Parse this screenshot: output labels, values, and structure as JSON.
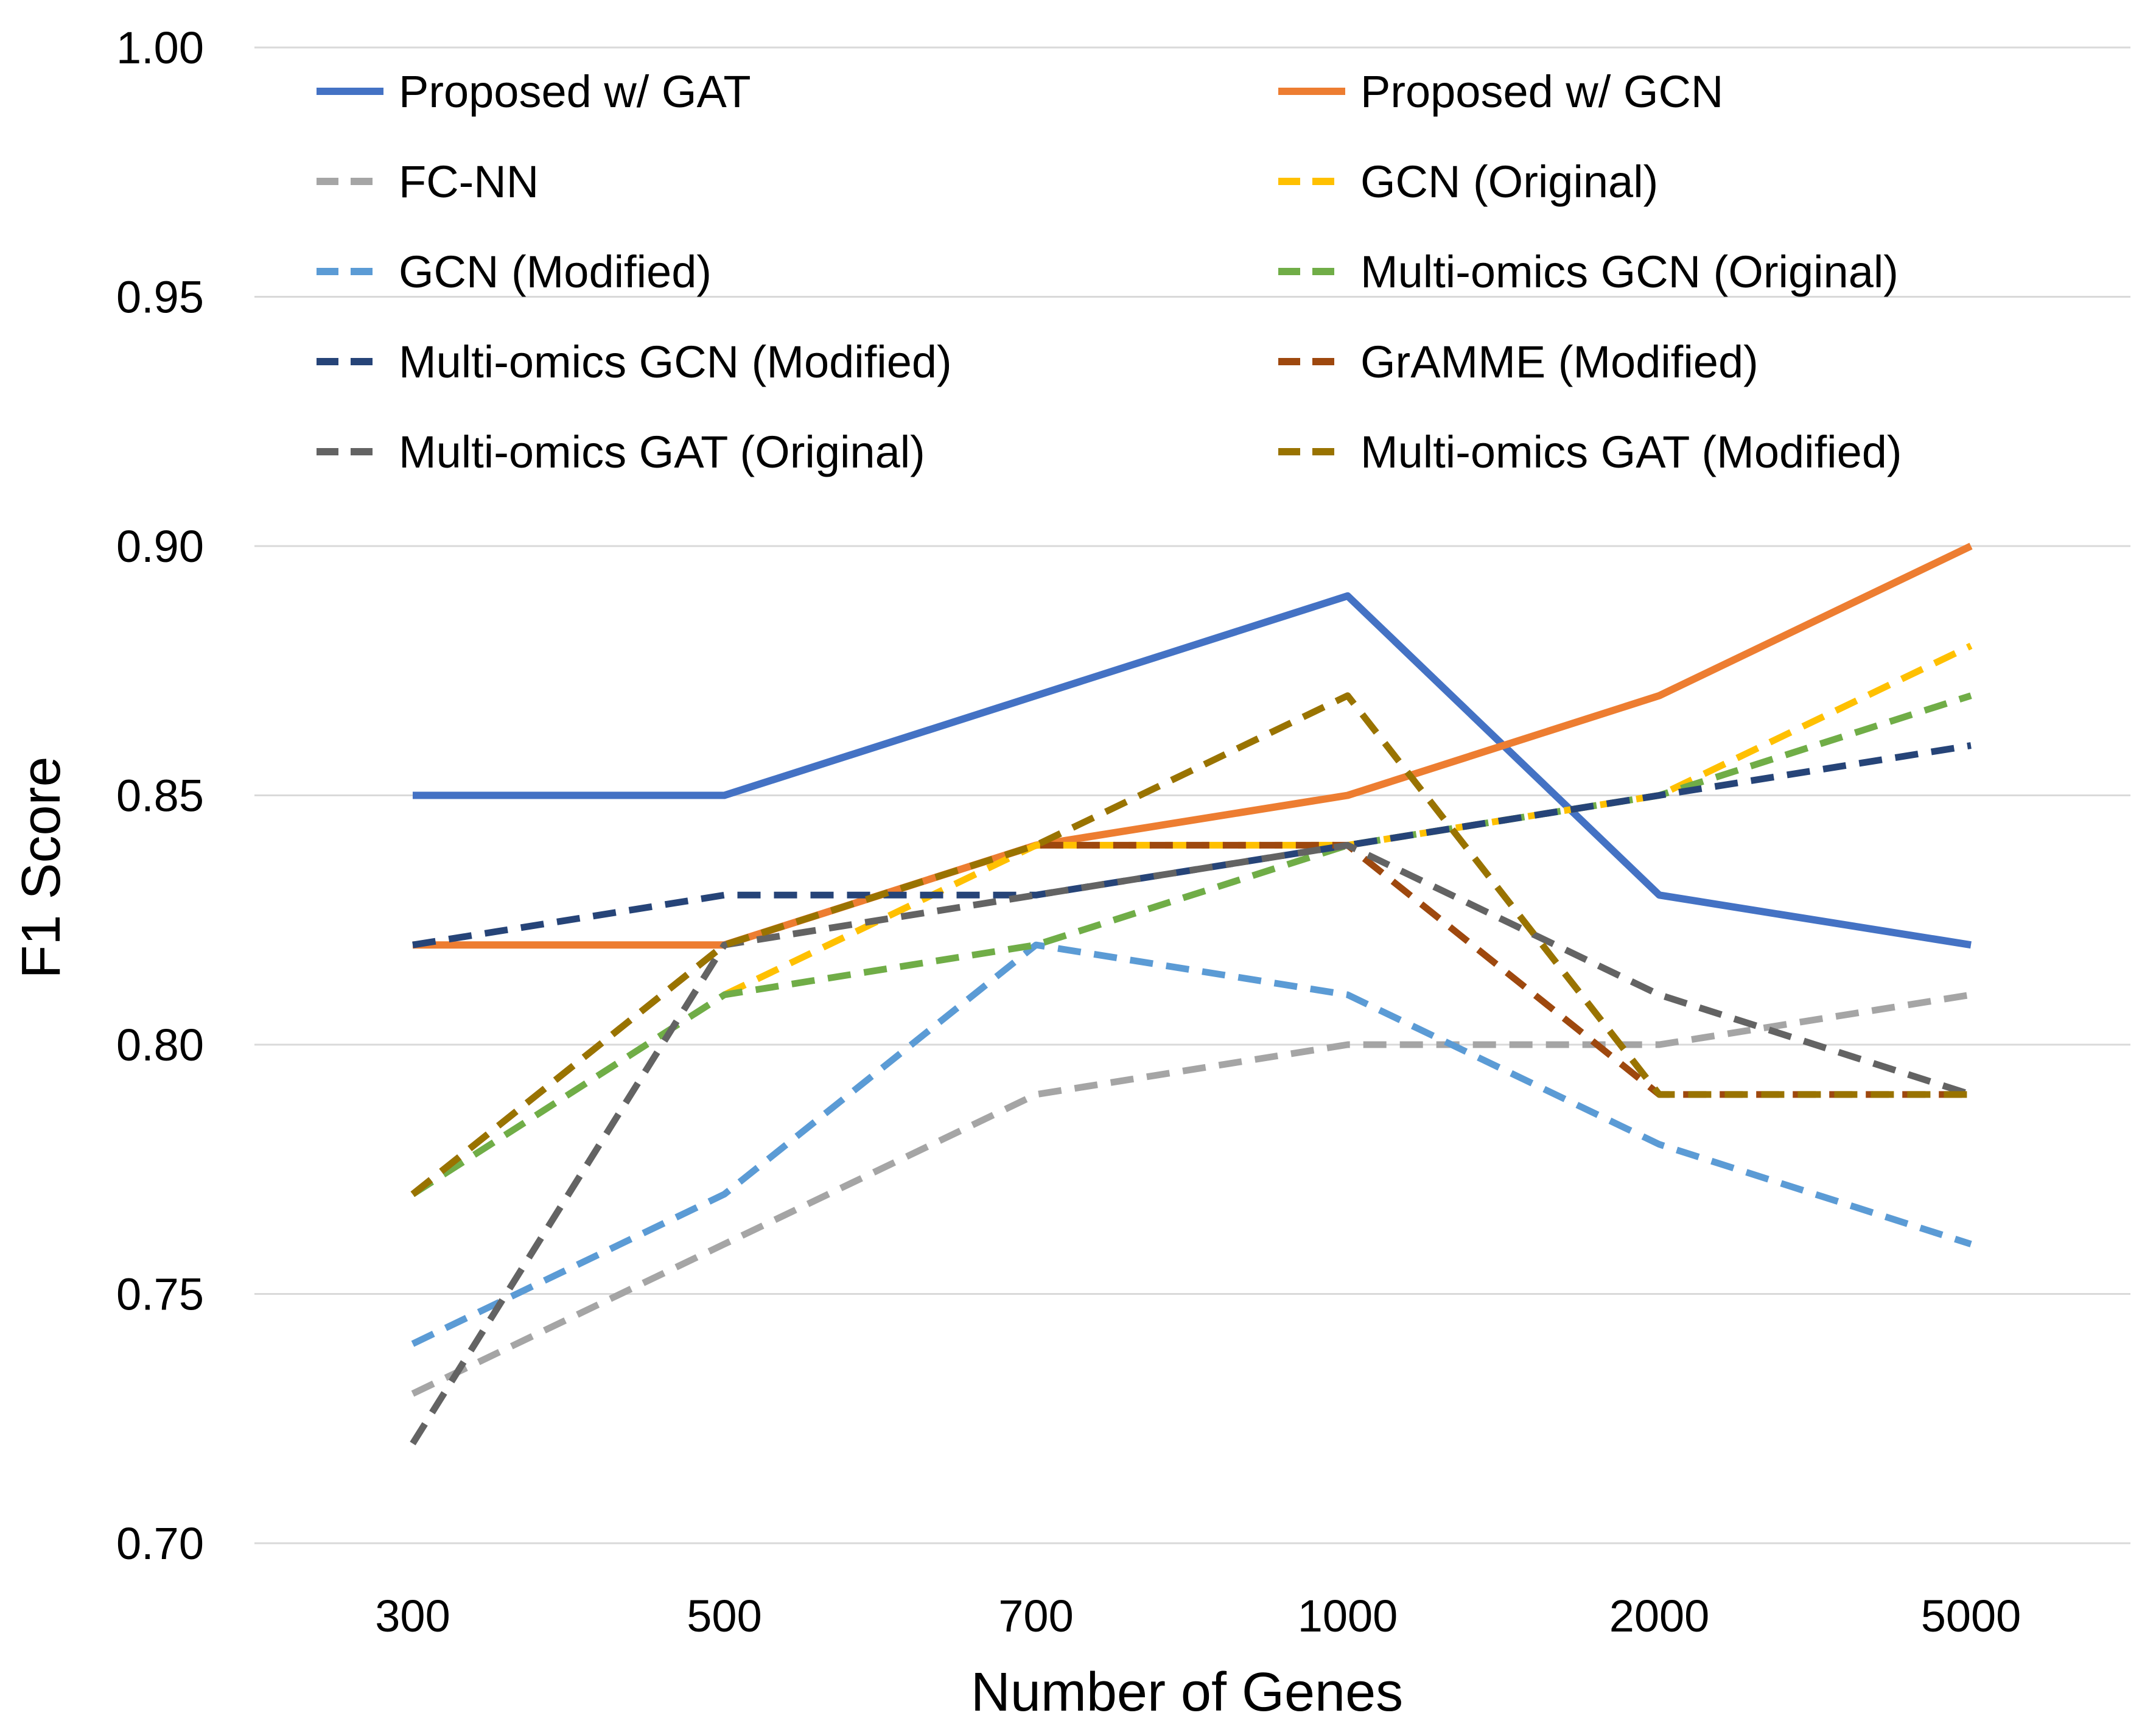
{
  "chart_data": {
    "type": "line",
    "title": "",
    "xlabel": "Number of Genes",
    "ylabel": "F1 Score",
    "categories": [
      "300",
      "500",
      "700",
      "1000",
      "2000",
      "5000"
    ],
    "ylim": [
      0.7,
      1.0
    ],
    "yticks": [
      "0.70",
      "0.75",
      "0.80",
      "0.85",
      "0.90",
      "0.95",
      "1.00"
    ],
    "ytick_values": [
      0.7,
      0.75,
      0.8,
      0.85,
      0.9,
      0.95,
      1.0
    ],
    "grid": true,
    "legend_position": "top",
    "series": [
      {
        "name": "Proposed w/ GAT",
        "color": "#4472C4",
        "dash": "solid",
        "values": [
          0.85,
          0.85,
          0.87,
          0.89,
          0.83,
          0.82
        ]
      },
      {
        "name": "Proposed w/ GCN",
        "color": "#ED7D31",
        "dash": "solid",
        "values": [
          0.82,
          0.82,
          0.84,
          0.85,
          0.87,
          0.9
        ]
      },
      {
        "name": "FC-NN",
        "color": "#A5A5A5",
        "dash": "dashed",
        "values": [
          0.73,
          0.76,
          0.79,
          0.8,
          0.8,
          0.81
        ]
      },
      {
        "name": "GCN (Original)",
        "color": "#FFC000",
        "dash": "dashed",
        "values": [
          null,
          0.81,
          0.84,
          0.84,
          0.85,
          0.88
        ]
      },
      {
        "name": "GCN (Modified)",
        "color": "#5B9BD5",
        "dash": "dashed",
        "values": [
          0.74,
          0.77,
          0.82,
          0.81,
          0.78,
          0.76
        ]
      },
      {
        "name": "Multi-omics GCN (Original)",
        "color": "#70AD47",
        "dash": "dashed",
        "values": [
          0.77,
          0.81,
          0.82,
          0.84,
          0.85,
          0.87
        ]
      },
      {
        "name": "Multi-omics GCN (Modified)",
        "color": "#264478",
        "dash": "dashed",
        "values": [
          0.82,
          0.83,
          0.83,
          0.84,
          0.85,
          0.86
        ]
      },
      {
        "name": "GrAMME (Modified)",
        "color": "#9E480E",
        "dash": "dashed",
        "values": [
          0.77,
          0.82,
          0.84,
          0.84,
          0.79,
          0.79
        ]
      },
      {
        "name": "Multi-omics GAT (Original)",
        "color": "#636363",
        "dash": "dashed",
        "values": [
          0.72,
          0.82,
          0.83,
          0.84,
          0.81,
          0.79
        ]
      },
      {
        "name": "Multi-omics GAT (Modified)",
        "color": "#997300",
        "dash": "dashed",
        "values": [
          0.77,
          0.82,
          0.84,
          0.87,
          0.79,
          0.79
        ]
      }
    ]
  }
}
